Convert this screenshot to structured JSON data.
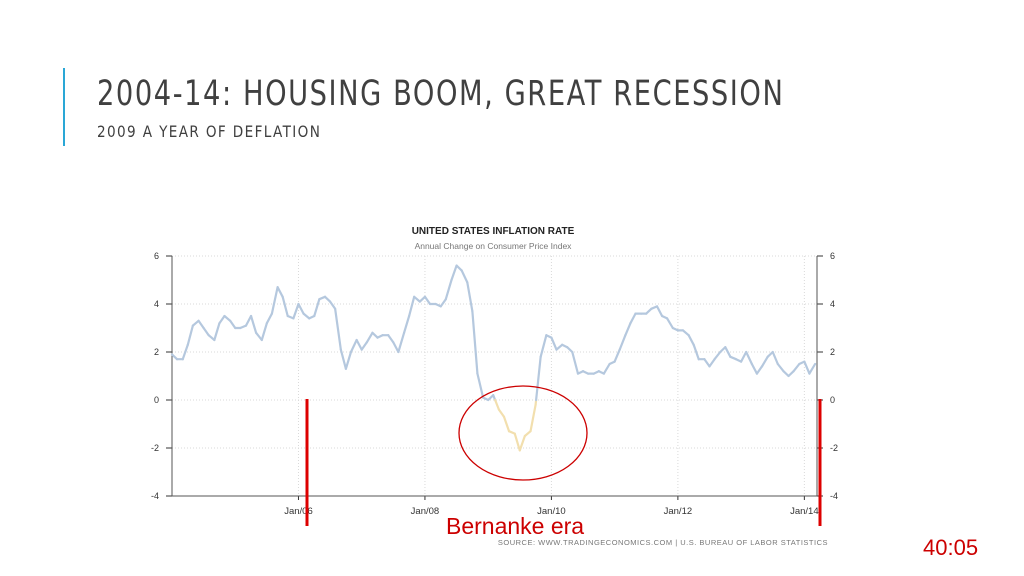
{
  "slide": {
    "title": "2004-14: HOUSING BOOM, GREAT RECESSION",
    "subtitle": "2009 A YEAR OF DEFLATION",
    "accent_color": "#2aa7d6",
    "annotation_label": "Bernanke era",
    "annotation_color": "#cc0000",
    "timer": "40:05"
  },
  "chart_data": {
    "type": "line",
    "title": "UNITED STATES INFLATION RATE",
    "subtitle": "Annual Change on Consumer Price Index",
    "source": "SOURCE: WWW.TRADINGECONOMICS.COM | U.S. BUREAU OF LABOR STATISTICS",
    "xlabel": "",
    "ylabel": "",
    "ylim": [
      -4,
      6
    ],
    "xlim": [
      2004.0,
      2014.2
    ],
    "yticks": [
      -4,
      -2,
      0,
      2,
      4,
      6
    ],
    "xticks": [
      {
        "value": 2006.0,
        "label": "Jan/06"
      },
      {
        "value": 2008.0,
        "label": "Jan/08"
      },
      {
        "value": 2010.0,
        "label": "Jan/10"
      },
      {
        "value": 2012.0,
        "label": "Jan/12"
      },
      {
        "value": 2014.0,
        "label": "Jan/14"
      }
    ],
    "grid": true,
    "positive_color": "#b5c8de",
    "negative_color": "#f2dfae",
    "series": [
      {
        "x": [
          2004.0,
          2004.08,
          2004.17,
          2004.25,
          2004.33,
          2004.42,
          2004.5,
          2004.58,
          2004.67,
          2004.75,
          2004.83,
          2004.92,
          2005.0,
          2005.08,
          2005.17,
          2005.25,
          2005.33,
          2005.42,
          2005.5,
          2005.58,
          2005.67,
          2005.75,
          2005.83,
          2005.92,
          2006.0,
          2006.08,
          2006.17,
          2006.25,
          2006.33,
          2006.42,
          2006.5,
          2006.58,
          2006.67,
          2006.75,
          2006.83,
          2006.92,
          2007.0,
          2007.08,
          2007.17,
          2007.25,
          2007.33,
          2007.42,
          2007.5,
          2007.58,
          2007.67,
          2007.75,
          2007.83,
          2007.92,
          2008.0,
          2008.08,
          2008.17,
          2008.25,
          2008.33,
          2008.42,
          2008.5,
          2008.58,
          2008.67,
          2008.75,
          2008.83,
          2008.92,
          2009.0,
          2009.08,
          2009.17,
          2009.25,
          2009.33,
          2009.42,
          2009.5,
          2009.58,
          2009.67,
          2009.75,
          2009.83,
          2009.92,
          2010.0,
          2010.08,
          2010.17,
          2010.25,
          2010.33,
          2010.42,
          2010.5,
          2010.58,
          2010.67,
          2010.75,
          2010.83,
          2010.92,
          2011.0,
          2011.08,
          2011.17,
          2011.25,
          2011.33,
          2011.42,
          2011.5,
          2011.58,
          2011.67,
          2011.75,
          2011.83,
          2011.92,
          2012.0,
          2012.08,
          2012.17,
          2012.25,
          2012.33,
          2012.42,
          2012.5,
          2012.58,
          2012.67,
          2012.75,
          2012.83,
          2012.92,
          2013.0,
          2013.08,
          2013.17,
          2013.25,
          2013.33,
          2013.42,
          2013.5,
          2013.58,
          2013.67,
          2013.75,
          2013.83,
          2013.92,
          2014.0,
          2014.08,
          2014.17
        ],
        "values": [
          1.9,
          1.7,
          1.7,
          2.3,
          3.1,
          3.3,
          3.0,
          2.7,
          2.5,
          3.2,
          3.5,
          3.3,
          3.0,
          3.0,
          3.1,
          3.5,
          2.8,
          2.5,
          3.2,
          3.6,
          4.7,
          4.3,
          3.5,
          3.4,
          4.0,
          3.6,
          3.4,
          3.5,
          4.2,
          4.3,
          4.1,
          3.8,
          2.1,
          1.3,
          2.0,
          2.5,
          2.1,
          2.4,
          2.8,
          2.6,
          2.7,
          2.7,
          2.4,
          2.0,
          2.8,
          3.5,
          4.3,
          4.1,
          4.3,
          4.0,
          4.0,
          3.9,
          4.2,
          5.0,
          5.6,
          5.4,
          4.9,
          3.7,
          1.1,
          0.1,
          0.0,
          0.2,
          -0.4,
          -0.7,
          -1.3,
          -1.4,
          -2.1,
          -1.5,
          -1.3,
          -0.2,
          1.8,
          2.7,
          2.6,
          2.1,
          2.3,
          2.2,
          2.0,
          1.1,
          1.2,
          1.1,
          1.1,
          1.2,
          1.1,
          1.5,
          1.6,
          2.1,
          2.7,
          3.2,
          3.6,
          3.6,
          3.6,
          3.8,
          3.9,
          3.5,
          3.4,
          3.0,
          2.9,
          2.9,
          2.7,
          2.3,
          1.7,
          1.7,
          1.4,
          1.7,
          2.0,
          2.2,
          1.8,
          1.7,
          1.6,
          2.0,
          1.5,
          1.1,
          1.4,
          1.8,
          2.0,
          1.5,
          1.2,
          1.0,
          1.2,
          1.5,
          1.6,
          1.1,
          1.5
        ]
      }
    ]
  }
}
